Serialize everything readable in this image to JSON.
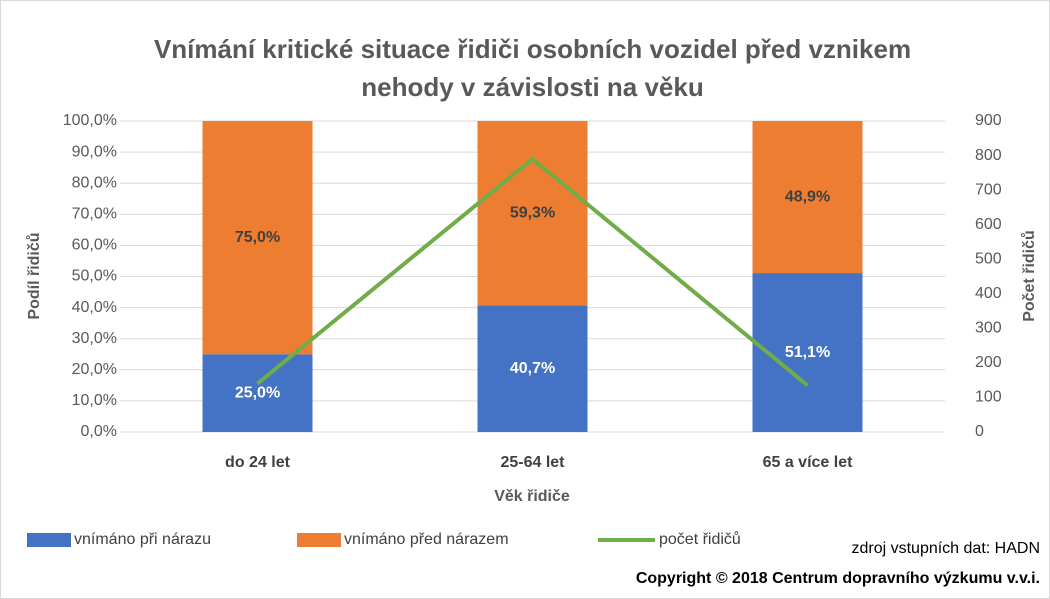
{
  "chart_data": {
    "type": "bar",
    "stacked": true,
    "title": "Vnímání kritické situace řidiči osobních vozidel před vznikem nehody v závislosti na věku",
    "x_label": "Věk řidiče",
    "y_label": "Podíl řidičů",
    "y2_label": "Počet řidičů",
    "categories": [
      "do 24 let",
      "25-64 let",
      "65 a více let"
    ],
    "series": [
      {
        "name": "vnímáno při nárazu",
        "type": "bar",
        "color": "#4472c4",
        "values": [
          25.0,
          40.7,
          51.1
        ],
        "value_labels": [
          "25,0%",
          "40,7%",
          "51,1%"
        ]
      },
      {
        "name": "vnímáno před nárazem",
        "type": "bar",
        "color": "#ed7d31",
        "values": [
          75.0,
          59.3,
          48.9
        ],
        "value_labels": [
          "75,0%",
          "59,3%",
          "48,9%"
        ]
      },
      {
        "name": "počet řidičů",
        "type": "line",
        "axis": "y2",
        "color": "#70ad47",
        "values": [
          140,
          790,
          135
        ]
      }
    ],
    "ylim": [
      0,
      100
    ],
    "yticks": [
      {
        "value": 0,
        "label": "0,0%"
      },
      {
        "value": 10,
        "label": "10,0%"
      },
      {
        "value": 20,
        "label": "20,0%"
      },
      {
        "value": 30,
        "label": "30,0%"
      },
      {
        "value": 40,
        "label": "40,0%"
      },
      {
        "value": 50,
        "label": "50,0%"
      },
      {
        "value": 60,
        "label": "60,0%"
      },
      {
        "value": 70,
        "label": "70,0%"
      },
      {
        "value": 80,
        "label": "80,0%"
      },
      {
        "value": 90,
        "label": "90,0%"
      },
      {
        "value": 100,
        "label": "100,0%"
      }
    ],
    "y2lim": [
      0,
      900
    ],
    "y2ticks": [
      0,
      100,
      200,
      300,
      400,
      500,
      600,
      700,
      800,
      900
    ],
    "grid": true,
    "legend": "bottom",
    "source": "zdroj vstupních dat: HADN",
    "copyright": "Copyright © 2018 Centrum dopravního výzkumu v.v.i."
  }
}
